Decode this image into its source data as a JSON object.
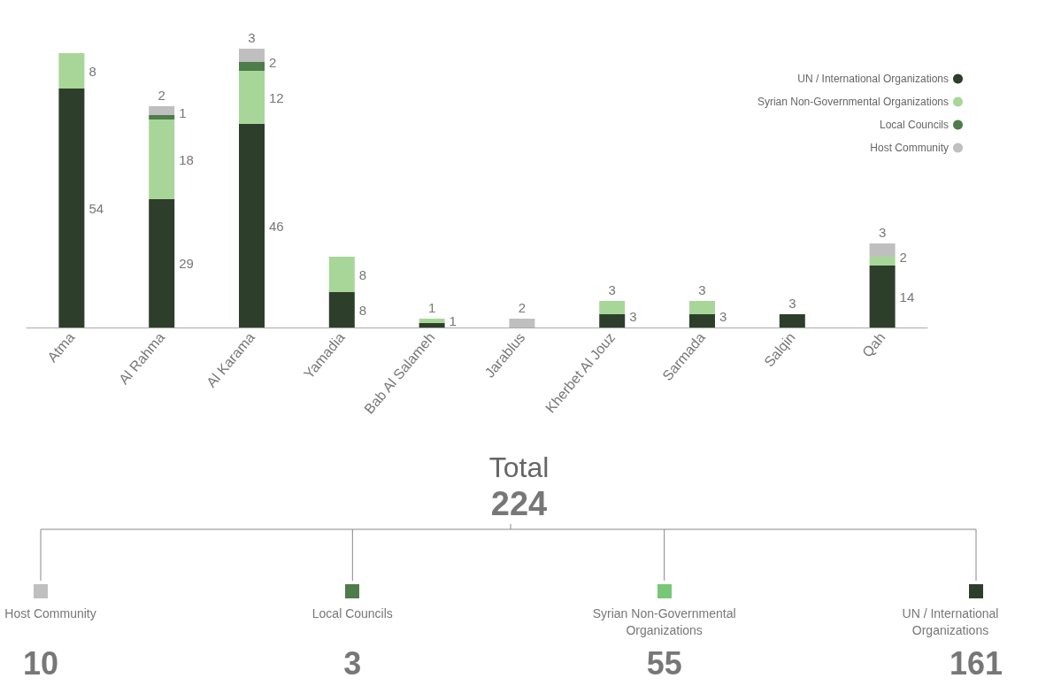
{
  "chart_data": [
    {
      "type": "bar",
      "stacked": true,
      "data_labels": true,
      "legend": "top right",
      "categories": [
        "Atma",
        "Al Rahma",
        "Al Karama",
        "Yamadia",
        "Bab Al Salameh",
        "Jarablus",
        "Kherbet Al Jouz",
        "Sarmada",
        "Salqin",
        "Qah"
      ],
      "series": [
        {
          "name": "UN / International Organizations",
          "color": "#2d3e2b",
          "values": [
            54,
            29,
            46,
            8,
            1,
            null,
            3,
            3,
            3,
            14
          ]
        },
        {
          "name": "Syrian Non-Governmental Organizations",
          "color": "#a8d699",
          "values": [
            8,
            18,
            12,
            8,
            1,
            null,
            3,
            3,
            null,
            2
          ]
        },
        {
          "name": "Local Councils",
          "color": "#4e7c4b",
          "values": [
            null,
            1,
            2,
            null,
            null,
            null,
            null,
            null,
            null,
            null
          ]
        },
        {
          "name": "Host Community",
          "color": "#bfbfbf",
          "values": [
            null,
            2,
            3,
            null,
            null,
            2,
            null,
            null,
            null,
            3
          ]
        }
      ]
    },
    {
      "type": "other",
      "title": "Total",
      "subtitle": "224",
      "data_labels": true,
      "categories": [
        "Host Community",
        "Local Councils",
        "Syrian Non-Governmental Organizations",
        "UN / International Organizations"
      ],
      "values": [
        10,
        3,
        55,
        161
      ],
      "colors": [
        "#bfbfbf",
        "#4e7c4b",
        "#77c777",
        "#2d3e2b"
      ]
    }
  ]
}
